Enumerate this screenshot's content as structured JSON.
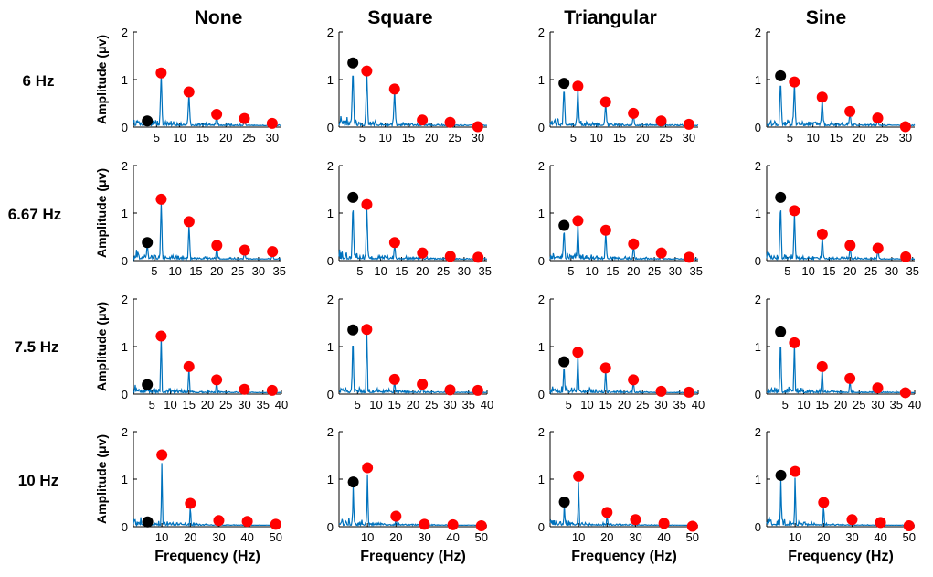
{
  "figure": {
    "column_titles": [
      "None",
      "Square",
      "Triangular",
      "Sine"
    ],
    "row_labels": [
      "6 Hz",
      "6.67 Hz",
      "7.5 Hz",
      "10 Hz"
    ],
    "ylabel": "Amplitude (μv)",
    "xlabel": "Frequency (Hz)",
    "line_color": "#0072BD",
    "harmonic_marker_color": "#FF0000",
    "subharmonic_marker_color": "#000000"
  },
  "chart_data": {
    "type": "line",
    "layout": "4x4 grid of FFT spectra; columns = modulation waveform, rows = stimulation frequency",
    "ylim": [
      0,
      2
    ],
    "yticks": [
      0,
      1,
      2
    ],
    "rows": [
      {
        "label": "6 Hz",
        "freq": 6,
        "xlim": [
          0,
          32
        ],
        "xticks": [
          5,
          10,
          15,
          20,
          25,
          30
        ],
        "panels": [
          {
            "column": "None",
            "sub": 0.13,
            "harmonics": [
              1.14,
              0.74,
              0.27,
              0.18,
              0.08
            ]
          },
          {
            "column": "Square",
            "sub": 1.35,
            "harmonics": [
              1.18,
              0.8,
              0.15,
              0.1,
              0.01
            ]
          },
          {
            "column": "Triangular",
            "sub": 0.92,
            "harmonics": [
              0.86,
              0.53,
              0.29,
              0.13,
              0.06
            ]
          },
          {
            "column": "Sine",
            "sub": 1.08,
            "harmonics": [
              0.95,
              0.63,
              0.33,
              0.19,
              0.01
            ]
          }
        ]
      },
      {
        "label": "6.67 Hz",
        "freq": 6.67,
        "xlim": [
          0,
          35.5
        ],
        "xticks": [
          5,
          10,
          15,
          20,
          25,
          30,
          35
        ],
        "panels": [
          {
            "column": "None",
            "sub": 0.38,
            "harmonics": [
              1.29,
              0.82,
              0.32,
              0.22,
              0.19
            ]
          },
          {
            "column": "Square",
            "sub": 1.33,
            "harmonics": [
              1.18,
              0.38,
              0.16,
              0.09,
              0.07
            ]
          },
          {
            "column": "Triangular",
            "sub": 0.74,
            "harmonics": [
              0.84,
              0.64,
              0.35,
              0.16,
              0.07
            ]
          },
          {
            "column": "Sine",
            "sub": 1.33,
            "harmonics": [
              1.05,
              0.56,
              0.32,
              0.26,
              0.08
            ]
          }
        ]
      },
      {
        "label": "7.5 Hz",
        "freq": 7.5,
        "xlim": [
          0,
          40
        ],
        "xticks": [
          5,
          10,
          15,
          20,
          25,
          30,
          35,
          40
        ],
        "panels": [
          {
            "column": "None",
            "sub": 0.2,
            "harmonics": [
              1.22,
              0.58,
              0.3,
              0.1,
              0.08
            ]
          },
          {
            "column": "Square",
            "sub": 1.35,
            "harmonics": [
              1.36,
              0.31,
              0.21,
              0.09,
              0.08
            ]
          },
          {
            "column": "Triangular",
            "sub": 0.68,
            "harmonics": [
              0.88,
              0.55,
              0.3,
              0.06,
              0.04
            ]
          },
          {
            "column": "Sine",
            "sub": 1.31,
            "harmonics": [
              1.08,
              0.58,
              0.33,
              0.13,
              0.03
            ]
          }
        ]
      },
      {
        "label": "10 Hz",
        "freq": 10,
        "xlim": [
          0,
          52
        ],
        "xticks": [
          10,
          20,
          30,
          40,
          50
        ],
        "panels": [
          {
            "column": "None",
            "sub": 0.1,
            "harmonics": [
              1.51,
              0.49,
              0.13,
              0.11,
              0.05
            ]
          },
          {
            "column": "Square",
            "sub": 0.94,
            "harmonics": [
              1.24,
              0.22,
              0.05,
              0.04,
              0.02
            ]
          },
          {
            "column": "Triangular",
            "sub": 0.52,
            "harmonics": [
              1.06,
              0.3,
              0.15,
              0.07,
              0.01
            ]
          },
          {
            "column": "Sine",
            "sub": 1.08,
            "harmonics": [
              1.16,
              0.51,
              0.15,
              0.09,
              0.02
            ]
          }
        ]
      }
    ]
  }
}
